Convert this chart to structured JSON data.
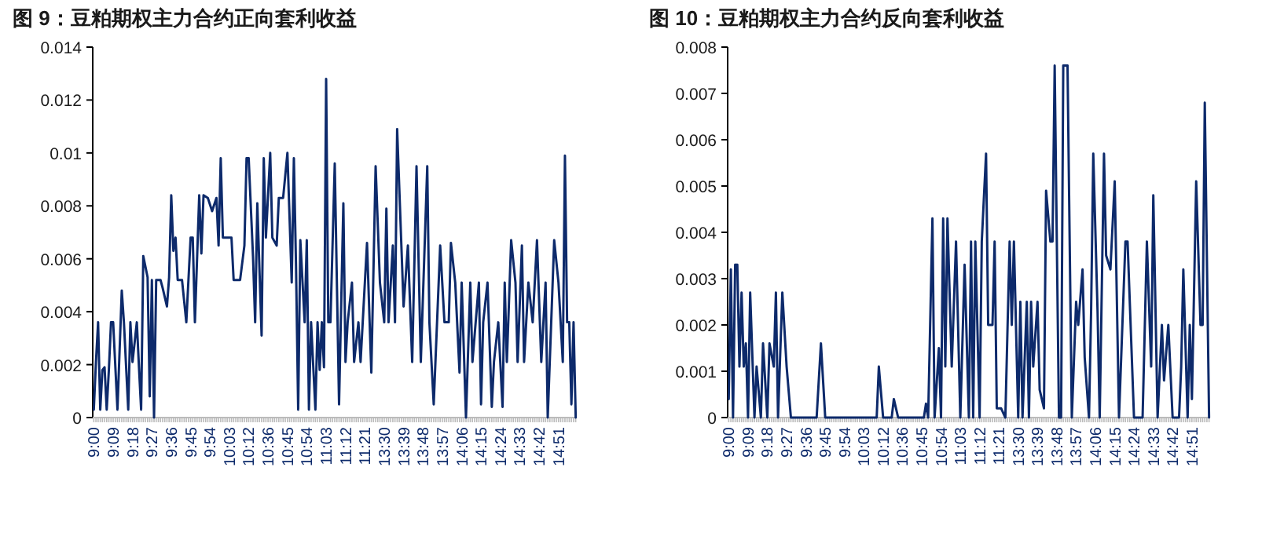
{
  "chart_data": [
    {
      "type": "line",
      "title": "图 9：豆粕期权主力合约正向套利收益",
      "color": "#0d2a6b",
      "grid": false,
      "legend": false,
      "ylim": [
        0,
        0.014
      ],
      "yticks": [
        0,
        0.002,
        0.004,
        0.006,
        0.008,
        0.01,
        0.012,
        0.014
      ],
      "categories": [
        "9:00",
        null,
        null,
        null,
        null,
        null,
        null,
        null,
        null,
        "9:09",
        null,
        null,
        null,
        null,
        null,
        null,
        null,
        null,
        "9:18",
        null,
        null,
        null,
        null,
        null,
        null,
        null,
        null,
        "9:27",
        null,
        null,
        null,
        null,
        null,
        null,
        null,
        null,
        "9:36",
        null,
        null,
        null,
        null,
        null,
        null,
        null,
        null,
        "9:45",
        null,
        null,
        null,
        null,
        null,
        null,
        null,
        null,
        "9:54",
        null,
        null,
        null,
        null,
        null,
        null,
        null,
        null,
        "10:03",
        null,
        null,
        null,
        null,
        null,
        null,
        null,
        null,
        "10:12",
        null,
        null,
        null,
        null,
        null,
        null,
        null,
        null,
        "10:36",
        null,
        null,
        null,
        null,
        null,
        null,
        null,
        null,
        "10:45",
        null,
        null,
        null,
        null,
        null,
        null,
        null,
        null,
        "10:54",
        null,
        null,
        null,
        null,
        null,
        null,
        null,
        null,
        "11:03",
        null,
        null,
        null,
        null,
        null,
        null,
        null,
        null,
        "11:12",
        null,
        null,
        null,
        null,
        null,
        null,
        null,
        null,
        "11:21",
        null,
        null,
        null,
        null,
        null,
        null,
        null,
        null,
        "13:30",
        null,
        null,
        null,
        null,
        null,
        null,
        null,
        null,
        "13:39",
        null,
        null,
        null,
        null,
        null,
        null,
        null,
        null,
        "13:48",
        null,
        null,
        null,
        null,
        null,
        null,
        null,
        null,
        "13:57",
        null,
        null,
        null,
        null,
        null,
        null,
        null,
        null,
        "14:06",
        null,
        null,
        null,
        null,
        null,
        null,
        null,
        null,
        "14:15",
        null,
        null,
        null,
        null,
        null,
        null,
        null,
        null,
        "14:24",
        null,
        null,
        null,
        null,
        null,
        null,
        null,
        null,
        "14:33",
        null,
        null,
        null,
        null,
        null,
        null,
        null,
        null,
        "14:42",
        null,
        null,
        null,
        null,
        null,
        null,
        null,
        null,
        "14:51",
        null,
        null,
        null,
        null,
        null,
        null,
        null,
        null
      ],
      "values": [
        0.0003,
        0.0021,
        0.0036,
        0.0003,
        0.0018,
        0.0019,
        0.0003,
        0.0018,
        0.0036,
        0.0036,
        null,
        0.0003,
        null,
        0.0048,
        0.0036,
        null,
        0.0003,
        0.0036,
        0.0021,
        null,
        0.0036,
        0.0019,
        0.0003,
        0.0061,
        null,
        0.0053,
        0.0008,
        0.0052,
        0,
        0.0052,
        null,
        0.0052,
        0.0049,
        null,
        0.0042,
        0.0053,
        0.0084,
        0.0063,
        0.0068,
        0.0052,
        null,
        0.0052,
        null,
        0.0036,
        null,
        0.0068,
        0.0068,
        0.0036,
        null,
        0.0084,
        0.0062,
        0.0084,
        null,
        0.0083,
        null,
        0.0078,
        null,
        0.0083,
        0.0065,
        0.0098,
        0.0068,
        null,
        null,
        null,
        0.0068,
        0.0052,
        null,
        null,
        0.0052,
        null,
        0.0065,
        0.0098,
        0.0098,
        null,
        0.0061,
        0.0036,
        0.0081,
        null,
        0.0031,
        0.0098,
        0.0068,
        null,
        0.01,
        0.0068,
        null,
        0.0065,
        0.0083,
        null,
        0.0083,
        null,
        0.01,
        null,
        0.0051,
        0.0098,
        0.0057,
        0.0003,
        0.0067,
        null,
        0.0036,
        0.0067,
        0.0003,
        0.0036,
        null,
        0.0003,
        0.0036,
        0.0018,
        0.0036,
        0.0019,
        0.0128,
        0.0036,
        0.0036,
        null,
        0.0096,
        null,
        0.0005,
        null,
        0.0081,
        0.0021,
        0.0036,
        null,
        0.0051,
        0.0021,
        null,
        0.0036,
        0.0021,
        null,
        0.0051,
        0.0066,
        null,
        0.0017,
        null,
        0.0095,
        null,
        0.0051,
        null,
        0.0036,
        0.0079,
        0.0036,
        null,
        0.0065,
        0.0036,
        0.0109,
        null,
        null,
        0.0042,
        null,
        0.0065,
        null,
        0.0021,
        null,
        0.0095,
        null,
        0.0021,
        null,
        null,
        0.0095,
        0.0036,
        null,
        0.0005,
        null,
        null,
        0.0065,
        null,
        0.0036,
        null,
        0.0036,
        0.0066,
        null,
        0.0051,
        null,
        0.0017,
        0.0051,
        null,
        0,
        null,
        0.0051,
        0.0021,
        null,
        null,
        0.0051,
        0.0005,
        0.0036,
        null,
        0.0051,
        null,
        0.0004,
        0.0021,
        null,
        0.0036,
        null,
        0.0004,
        0.0051,
        0.0021,
        null,
        0.0067,
        null,
        0.0051,
        0.0021,
        null,
        0.0065,
        0.0021,
        null,
        0.0051,
        null,
        0.0036,
        null,
        0.0067,
        null,
        0.0021,
        null,
        0.0051,
        0,
        null,
        null,
        0.0067,
        null,
        0.0051,
        null,
        0.0021,
        0.0099,
        0.0036,
        0.0036,
        0.0005,
        0.0036,
        0
      ]
    },
    {
      "type": "line",
      "title": "图 10：豆粕期权主力合约反向套利收益",
      "color": "#0d2a6b",
      "grid": false,
      "legend": false,
      "ylim": [
        0,
        0.008
      ],
      "yticks": [
        0,
        0.001,
        0.002,
        0.003,
        0.004,
        0.005,
        0.006,
        0.007,
        0.008
      ],
      "categories": [
        "9:00",
        null,
        null,
        null,
        null,
        null,
        null,
        null,
        null,
        "9:09",
        null,
        null,
        null,
        null,
        null,
        null,
        null,
        null,
        "9:18",
        null,
        null,
        null,
        null,
        null,
        null,
        null,
        null,
        "9:27",
        null,
        null,
        null,
        null,
        null,
        null,
        null,
        null,
        "9:36",
        null,
        null,
        null,
        null,
        null,
        null,
        null,
        null,
        "9:45",
        null,
        null,
        null,
        null,
        null,
        null,
        null,
        null,
        "9:54",
        null,
        null,
        null,
        null,
        null,
        null,
        null,
        null,
        "10:03",
        null,
        null,
        null,
        null,
        null,
        null,
        null,
        null,
        "10:12",
        null,
        null,
        null,
        null,
        null,
        null,
        null,
        null,
        "10:36",
        null,
        null,
        null,
        null,
        null,
        null,
        null,
        null,
        "10:45",
        null,
        null,
        null,
        null,
        null,
        null,
        null,
        null,
        "10:54",
        null,
        null,
        null,
        null,
        null,
        null,
        null,
        null,
        "11:03",
        null,
        null,
        null,
        null,
        null,
        null,
        null,
        null,
        "11:12",
        null,
        null,
        null,
        null,
        null,
        null,
        null,
        null,
        "11:21",
        null,
        null,
        null,
        null,
        null,
        null,
        null,
        null,
        "13:30",
        null,
        null,
        null,
        null,
        null,
        null,
        null,
        null,
        "13:39",
        null,
        null,
        null,
        null,
        null,
        null,
        null,
        null,
        "13:48",
        null,
        null,
        null,
        null,
        null,
        null,
        null,
        null,
        "13:57",
        null,
        null,
        null,
        null,
        null,
        null,
        null,
        null,
        "14:06",
        null,
        null,
        null,
        null,
        null,
        null,
        null,
        null,
        "14:15",
        null,
        null,
        null,
        null,
        null,
        null,
        null,
        null,
        "14:24",
        null,
        null,
        null,
        null,
        null,
        null,
        null,
        null,
        "14:33",
        null,
        null,
        null,
        null,
        null,
        null,
        null,
        null,
        "14:42",
        null,
        null,
        null,
        null,
        null,
        null,
        null,
        null,
        "14:51",
        null,
        null,
        null,
        null,
        null,
        null,
        null,
        null
      ],
      "values": [
        0.0004,
        0.0032,
        0,
        0.0033,
        0.0033,
        0.0011,
        0.0027,
        0.0011,
        0.0016,
        0,
        0.0027,
        null,
        0,
        0.0011,
        null,
        0,
        0.0016,
        null,
        0,
        0.0016,
        null,
        0.0011,
        0.0027,
        0,
        null,
        0.0027,
        null,
        0.0011,
        null,
        0,
        0,
        0,
        0,
        0,
        0,
        0,
        0,
        0,
        0,
        0,
        0,
        0,
        null,
        0.0016,
        null,
        0,
        0,
        0,
        0,
        0,
        0,
        0,
        0,
        0,
        0,
        0,
        0,
        0,
        0,
        0,
        0,
        0,
        0,
        0,
        0,
        0,
        0,
        0,
        0,
        0,
        0.0011,
        null,
        0,
        0,
        0,
        0,
        0,
        0.0004,
        null,
        0,
        0,
        0,
        0,
        0,
        0,
        0,
        0,
        0,
        0,
        0,
        0,
        0,
        0.0003,
        0,
        null,
        0.0043,
        0,
        null,
        0.0015,
        0,
        0.0043,
        0.0011,
        0.0043,
        null,
        0.0011,
        null,
        0.0038,
        null,
        0,
        null,
        0.0033,
        null,
        0,
        0.0038,
        0,
        0.0038,
        null,
        0,
        0.0038,
        null,
        0.0057,
        0.002,
        null,
        0.002,
        0.0038,
        0.0002,
        null,
        0.0002,
        null,
        0,
        null,
        0.0038,
        0.002,
        0.0038,
        null,
        0,
        0.0025,
        0,
        null,
        0.0025,
        0,
        0.0025,
        0.0011,
        null,
        0.0025,
        0.0006,
        null,
        0.0002,
        0.0049,
        null,
        0.0038,
        0.0038,
        0.0076,
        null,
        0,
        0,
        0.0076,
        null,
        0.0076,
        null,
        0,
        null,
        0.0025,
        0.002,
        null,
        0.0032,
        0.0013,
        null,
        0,
        0.0023,
        0.0057,
        null,
        0.0023,
        0,
        null,
        0.0057,
        0.0035,
        null,
        0.0032,
        null,
        0.0051,
        null,
        0,
        null,
        null,
        0.0038,
        0.0038,
        null,
        null,
        0,
        0,
        0,
        0,
        0,
        null,
        0.0038,
        null,
        0.0011,
        0.0048,
        null,
        0,
        null,
        0.002,
        0.0008,
        null,
        0.002,
        null,
        0,
        0,
        0,
        0,
        0.0011,
        0.0032,
        null,
        0,
        0.002,
        0.0004,
        null,
        0.0051,
        null,
        0.002,
        0.002,
        0.0068,
        null,
        0
      ]
    }
  ]
}
